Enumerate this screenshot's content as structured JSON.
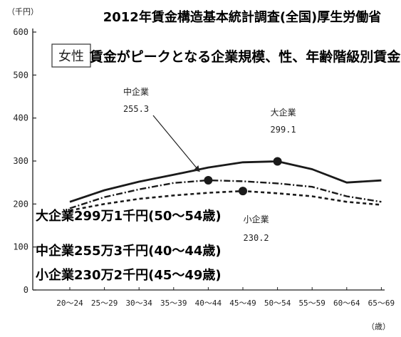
{
  "title": {
    "line1": "2012年賃金構造基本統計調査(全国)厚生労働省",
    "line2": "賃金がピークとなる企業規模、性、年齢階級別賃金",
    "tag": "女性"
  },
  "summary": [
    "大企業299万1千円(50～54歳)",
    "中企業255万3千円(40～44歳)",
    "小企業230万2千円(45～49歳)"
  ],
  "chart_data": {
    "type": "line",
    "title": "2012年賃金構造基本統計調査(全国)厚生労働省",
    "subtitle": "賃金がピークとなる企業規模、性、年齢階級別賃金",
    "y_unit": "（千円）",
    "x_unit": "（歳）",
    "ylim": [
      0,
      600
    ],
    "yticks": [
      0,
      100,
      200,
      300,
      400,
      500,
      600
    ],
    "grid": false,
    "categories": [
      "20～24",
      "25～29",
      "30～34",
      "35～39",
      "40～44",
      "45～49",
      "50～54",
      "55～59",
      "60～64",
      "65～69"
    ],
    "series": [
      {
        "name": "大企業",
        "style": "solid",
        "values": [
          205,
          232,
          252,
          268,
          285,
          297,
          299.1,
          281,
          250,
          255
        ],
        "peak_index": 6,
        "peak_label": "大企業",
        "peak_value_label": "299.1"
      },
      {
        "name": "中企業",
        "style": "dashdot",
        "values": [
          190,
          216,
          234,
          249,
          255.3,
          253,
          248,
          240,
          218,
          205
        ],
        "peak_index": 4,
        "peak_label": "中企業",
        "peak_value_label": "255.3"
      },
      {
        "name": "小企業",
        "style": "dashed",
        "values": [
          185,
          200,
          212,
          220,
          226,
          230.2,
          225,
          218,
          205,
          198
        ],
        "peak_index": 5,
        "peak_label": "小企業",
        "peak_value_label": "230.2"
      }
    ]
  }
}
